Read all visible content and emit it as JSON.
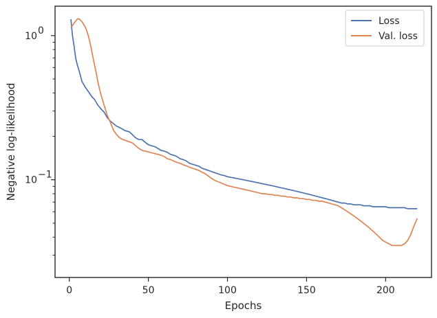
{
  "chart_data": {
    "type": "line",
    "xlabel": "Epochs",
    "ylabel": "Negative log-likelihood",
    "yscale": "log",
    "xlim": [
      -9,
      229
    ],
    "ylim": [
      0.021,
      1.6
    ],
    "grid": false,
    "legend_position": "top-right",
    "x_ticks": [
      0,
      50,
      100,
      150,
      200
    ],
    "x_tick_labels": [
      "0",
      "50",
      "100",
      "150",
      "200"
    ],
    "y_major_ticks": [
      0.1,
      1.0
    ],
    "y_major_tick_labels": {
      "base": [
        "10",
        "10"
      ],
      "exp": [
        "−1",
        "0"
      ]
    },
    "y_minor_ticks": [
      0.03,
      0.04,
      0.05,
      0.06,
      0.07,
      0.08,
      0.09,
      0.2,
      0.3,
      0.4,
      0.5,
      0.6,
      0.7,
      0.8,
      0.9
    ],
    "series": [
      {
        "name": "Loss",
        "color": "#4c72b0",
        "points": [
          [
            1,
            1.3
          ],
          [
            2,
            1.0
          ],
          [
            3,
            0.85
          ],
          [
            4,
            0.7
          ],
          [
            5,
            0.63
          ],
          [
            6,
            0.58
          ],
          [
            7,
            0.53
          ],
          [
            8,
            0.48
          ],
          [
            9,
            0.46
          ],
          [
            10,
            0.44
          ],
          [
            12,
            0.41
          ],
          [
            14,
            0.38
          ],
          [
            16,
            0.36
          ],
          [
            18,
            0.33
          ],
          [
            20,
            0.31
          ],
          [
            22,
            0.295
          ],
          [
            24,
            0.27
          ],
          [
            26,
            0.255
          ],
          [
            28,
            0.245
          ],
          [
            30,
            0.235
          ],
          [
            32,
            0.23
          ],
          [
            35,
            0.22
          ],
          [
            38,
            0.215
          ],
          [
            40,
            0.205
          ],
          [
            42,
            0.195
          ],
          [
            44,
            0.19
          ],
          [
            46,
            0.19
          ],
          [
            48,
            0.182
          ],
          [
            50,
            0.175
          ],
          [
            52,
            0.172
          ],
          [
            54,
            0.17
          ],
          [
            56,
            0.165
          ],
          [
            58,
            0.16
          ],
          [
            60,
            0.158
          ],
          [
            62,
            0.155
          ],
          [
            64,
            0.15
          ],
          [
            66,
            0.148
          ],
          [
            68,
            0.145
          ],
          [
            70,
            0.14
          ],
          [
            72,
            0.138
          ],
          [
            74,
            0.135
          ],
          [
            76,
            0.13
          ],
          [
            78,
            0.128
          ],
          [
            80,
            0.126
          ],
          [
            82,
            0.124
          ],
          [
            84,
            0.12
          ],
          [
            86,
            0.118
          ],
          [
            88,
            0.116
          ],
          [
            90,
            0.114
          ],
          [
            92,
            0.112
          ],
          [
            94,
            0.11
          ],
          [
            96,
            0.108
          ],
          [
            98,
            0.107
          ],
          [
            100,
            0.105
          ],
          [
            102,
            0.104
          ],
          [
            104,
            0.103
          ],
          [
            106,
            0.102
          ],
          [
            108,
            0.101
          ],
          [
            110,
            0.1
          ],
          [
            112,
            0.099
          ],
          [
            114,
            0.098
          ],
          [
            116,
            0.097
          ],
          [
            118,
            0.096
          ],
          [
            120,
            0.095
          ],
          [
            122,
            0.094
          ],
          [
            124,
            0.093
          ],
          [
            126,
            0.092
          ],
          [
            128,
            0.091
          ],
          [
            130,
            0.09
          ],
          [
            132,
            0.089
          ],
          [
            134,
            0.088
          ],
          [
            136,
            0.087
          ],
          [
            138,
            0.086
          ],
          [
            140,
            0.085
          ],
          [
            142,
            0.084
          ],
          [
            144,
            0.083
          ],
          [
            146,
            0.082
          ],
          [
            148,
            0.081
          ],
          [
            150,
            0.08
          ],
          [
            152,
            0.079
          ],
          [
            154,
            0.078
          ],
          [
            156,
            0.077
          ],
          [
            158,
            0.076
          ],
          [
            160,
            0.075
          ],
          [
            162,
            0.074
          ],
          [
            164,
            0.073
          ],
          [
            166,
            0.072
          ],
          [
            168,
            0.071
          ],
          [
            170,
            0.07
          ],
          [
            172,
            0.069
          ],
          [
            174,
            0.069
          ],
          [
            176,
            0.068
          ],
          [
            178,
            0.068
          ],
          [
            180,
            0.067
          ],
          [
            182,
            0.067
          ],
          [
            184,
            0.067
          ],
          [
            186,
            0.066
          ],
          [
            188,
            0.066
          ],
          [
            190,
            0.066
          ],
          [
            192,
            0.065
          ],
          [
            194,
            0.065
          ],
          [
            196,
            0.065
          ],
          [
            198,
            0.065
          ],
          [
            200,
            0.065
          ],
          [
            202,
            0.064
          ],
          [
            204,
            0.064
          ],
          [
            206,
            0.064
          ],
          [
            208,
            0.064
          ],
          [
            210,
            0.064
          ],
          [
            212,
            0.064
          ],
          [
            214,
            0.063
          ],
          [
            216,
            0.063
          ],
          [
            218,
            0.063
          ],
          [
            220,
            0.063
          ]
        ]
      },
      {
        "name": "Val. loss",
        "color": "#dd8452",
        "points": [
          [
            1,
            1.13
          ],
          [
            3,
            1.22
          ],
          [
            5,
            1.3
          ],
          [
            6,
            1.31
          ],
          [
            8,
            1.25
          ],
          [
            10,
            1.15
          ],
          [
            11,
            1.08
          ],
          [
            12,
            1.0
          ],
          [
            13,
            0.9
          ],
          [
            14,
            0.8
          ],
          [
            15,
            0.7
          ],
          [
            16,
            0.62
          ],
          [
            17,
            0.55
          ],
          [
            18,
            0.48
          ],
          [
            19,
            0.43
          ],
          [
            20,
            0.39
          ],
          [
            22,
            0.33
          ],
          [
            24,
            0.28
          ],
          [
            26,
            0.25
          ],
          [
            28,
            0.22
          ],
          [
            30,
            0.205
          ],
          [
            32,
            0.195
          ],
          [
            34,
            0.19
          ],
          [
            37,
            0.185
          ],
          [
            40,
            0.18
          ],
          [
            42,
            0.172
          ],
          [
            44,
            0.165
          ],
          [
            46,
            0.16
          ],
          [
            48,
            0.158
          ],
          [
            50,
            0.156
          ],
          [
            52,
            0.154
          ],
          [
            54,
            0.152
          ],
          [
            56,
            0.15
          ],
          [
            58,
            0.148
          ],
          [
            60,
            0.145
          ],
          [
            62,
            0.14
          ],
          [
            64,
            0.138
          ],
          [
            66,
            0.135
          ],
          [
            68,
            0.132
          ],
          [
            70,
            0.13
          ],
          [
            72,
            0.127
          ],
          [
            74,
            0.125
          ],
          [
            76,
            0.122
          ],
          [
            78,
            0.12
          ],
          [
            80,
            0.118
          ],
          [
            82,
            0.116
          ],
          [
            84,
            0.113
          ],
          [
            86,
            0.11
          ],
          [
            88,
            0.106
          ],
          [
            90,
            0.102
          ],
          [
            92,
            0.099
          ],
          [
            94,
            0.097
          ],
          [
            96,
            0.095
          ],
          [
            98,
            0.093
          ],
          [
            100,
            0.091
          ],
          [
            102,
            0.09
          ],
          [
            104,
            0.089
          ],
          [
            106,
            0.088
          ],
          [
            108,
            0.087
          ],
          [
            110,
            0.086
          ],
          [
            112,
            0.085
          ],
          [
            114,
            0.084
          ],
          [
            116,
            0.083
          ],
          [
            118,
            0.082
          ],
          [
            120,
            0.081
          ],
          [
            122,
            0.08
          ],
          [
            124,
            0.08
          ],
          [
            126,
            0.079
          ],
          [
            128,
            0.079
          ],
          [
            130,
            0.078
          ],
          [
            132,
            0.078
          ],
          [
            134,
            0.077
          ],
          [
            136,
            0.077
          ],
          [
            138,
            0.076
          ],
          [
            140,
            0.076
          ],
          [
            142,
            0.075
          ],
          [
            144,
            0.075
          ],
          [
            146,
            0.074
          ],
          [
            148,
            0.074
          ],
          [
            150,
            0.073
          ],
          [
            152,
            0.073
          ],
          [
            154,
            0.072
          ],
          [
            156,
            0.072
          ],
          [
            158,
            0.071
          ],
          [
            160,
            0.071
          ],
          [
            162,
            0.07
          ],
          [
            164,
            0.069
          ],
          [
            166,
            0.068
          ],
          [
            168,
            0.067
          ],
          [
            170,
            0.066
          ],
          [
            172,
            0.064
          ],
          [
            174,
            0.062
          ],
          [
            176,
            0.06
          ],
          [
            178,
            0.058
          ],
          [
            180,
            0.056
          ],
          [
            182,
            0.054
          ],
          [
            184,
            0.052
          ],
          [
            186,
            0.05
          ],
          [
            188,
            0.048
          ],
          [
            190,
            0.046
          ],
          [
            192,
            0.044
          ],
          [
            194,
            0.042
          ],
          [
            196,
            0.04
          ],
          [
            198,
            0.038
          ],
          [
            200,
            0.037
          ],
          [
            202,
            0.036
          ],
          [
            204,
            0.035
          ],
          [
            206,
            0.035
          ],
          [
            208,
            0.035
          ],
          [
            210,
            0.035
          ],
          [
            212,
            0.036
          ],
          [
            214,
            0.038
          ],
          [
            216,
            0.042
          ],
          [
            218,
            0.048
          ],
          [
            220,
            0.054
          ]
        ]
      }
    ]
  }
}
